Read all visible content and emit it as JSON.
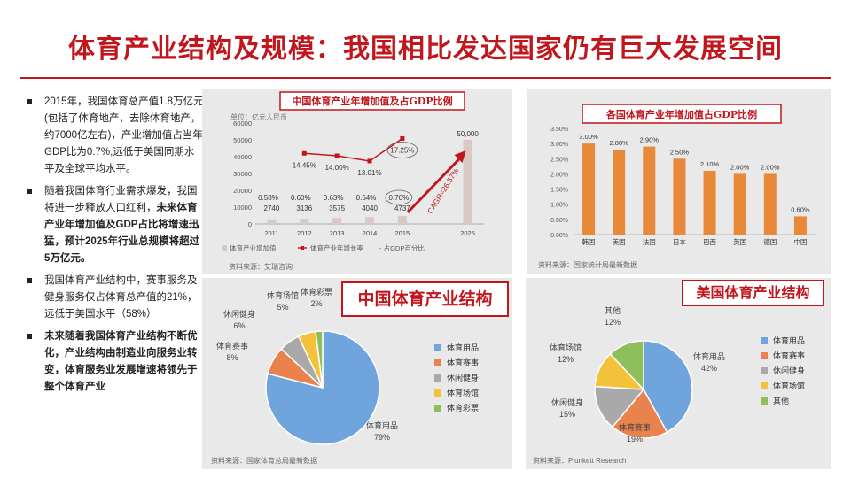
{
  "title": "体育产业结构及规模：我国相比发达国家仍有巨大发展空间",
  "bullets": [
    {
      "text": "2015年，我国体育总产值1.8万亿元(包括了体育地产，去除体育地产，约7000亿左右)，产业增加值占当年GDP比为0.7%,远低于美国同期水平及全球平均水平。",
      "bold": ""
    },
    {
      "text": "随着我国体育行业需求爆发，我国将进一步释放人口红利，",
      "bold": "未来体育产业年增加值及GDP占比将增速迅猛，预计2025年行业总规模将超过5万亿元。"
    },
    {
      "text": "我国体育产业结构中，赛事服务及健身服务仅占体育总产值的21%，远低于美国水平（58%）",
      "bold": ""
    },
    {
      "text": "",
      "bold": "未来随着我国体育产业结构不断优化，产业结构由制造业向服务业转变，体育服务业发展增速将领先于整个体育产业"
    }
  ],
  "colors": {
    "accent": "#c0161c",
    "bar_gray": "#d9c8c4",
    "bar_orange": "#e8893a",
    "line_red": "#c0161c"
  },
  "chart_data": [
    {
      "type": "bar",
      "title": "中国体育产业年增加值及占GDP比例",
      "unit_label": "单位：亿元人民币",
      "categories": [
        "2011",
        "2012",
        "2013",
        "2014",
        "2015",
        "……",
        "2025"
      ],
      "y_ticks": [
        "0",
        "10000",
        "20000",
        "30000",
        "40000",
        "50000",
        "60000"
      ],
      "ylim": [
        0,
        60000
      ],
      "series": [
        {
          "name": "体育产业增加值",
          "values": [
            2740,
            3136,
            3575,
            4040,
            4737,
            null,
            50000
          ],
          "labels": [
            "2740",
            "3136",
            "3575",
            "4040",
            "4737",
            "",
            "50,000"
          ]
        },
        {
          "name": "体育产业年增长率",
          "values": [
            null,
            14.45,
            14.0,
            13.01,
            17.25,
            null,
            null
          ],
          "labels": [
            "",
            "14.45%",
            "14.00%",
            "13.01%",
            "17.25%",
            "",
            ""
          ]
        },
        {
          "name": "占GDP百分比",
          "values": [
            0.58,
            0.6,
            0.63,
            0.64,
            0.7,
            null,
            null
          ],
          "labels": [
            "0.58%",
            "0.60%",
            "0.63%",
            "0.64%",
            "0.70%",
            "",
            ""
          ]
        }
      ],
      "annotation": "CAGR=26.57%",
      "source": "资料来源：艾瑞咨询"
    },
    {
      "type": "bar",
      "title": "各国体育产业年增加值占GDP比例",
      "categories": [
        "韩国",
        "美国",
        "法国",
        "日本",
        "巴西",
        "英国",
        "德国",
        "中国"
      ],
      "values": [
        3.0,
        2.8,
        2.9,
        2.5,
        2.1,
        2.0,
        2.0,
        0.6
      ],
      "value_labels": [
        "3.00%",
        "2.80%",
        "2.90%",
        "2.50%",
        "2.10%",
        "2.00%",
        "2.00%",
        "0.60%"
      ],
      "y_ticks": [
        "0.00%",
        "0.50%",
        "1.00%",
        "1.50%",
        "2.00%",
        "2.50%",
        "3.00%",
        "3.50%"
      ],
      "ylim": [
        0,
        3.5
      ],
      "source": "资料来源：国家统计局最新数据"
    },
    {
      "type": "pie",
      "title": "中国体育产业结构",
      "categories": [
        "体育用品",
        "体育赛事",
        "休闲健身",
        "体育场馆",
        "体育彩票"
      ],
      "values": [
        79,
        8,
        6,
        5,
        2
      ],
      "labels": [
        "79%",
        "8%",
        "6%",
        "5%",
        "2%"
      ],
      "colors": [
        "#6fa4dc",
        "#e8834e",
        "#a9a9a9",
        "#f4c23a",
        "#8fbf5a"
      ],
      "source": "资料来源：国家体育总局最新数据"
    },
    {
      "type": "pie",
      "title": "美国体育产业结构",
      "categories": [
        "体育用品",
        "体育赛事",
        "休闲健身",
        "体育场馆",
        "其他"
      ],
      "values": [
        42,
        19,
        15,
        12,
        12
      ],
      "labels": [
        "42%",
        "19%",
        "15%",
        "12%",
        "12%"
      ],
      "colors": [
        "#6fa4dc",
        "#e8834e",
        "#a9a9a9",
        "#f4c23a",
        "#8fbf5a"
      ],
      "source": "资料来源：Plunkett Research"
    }
  ]
}
